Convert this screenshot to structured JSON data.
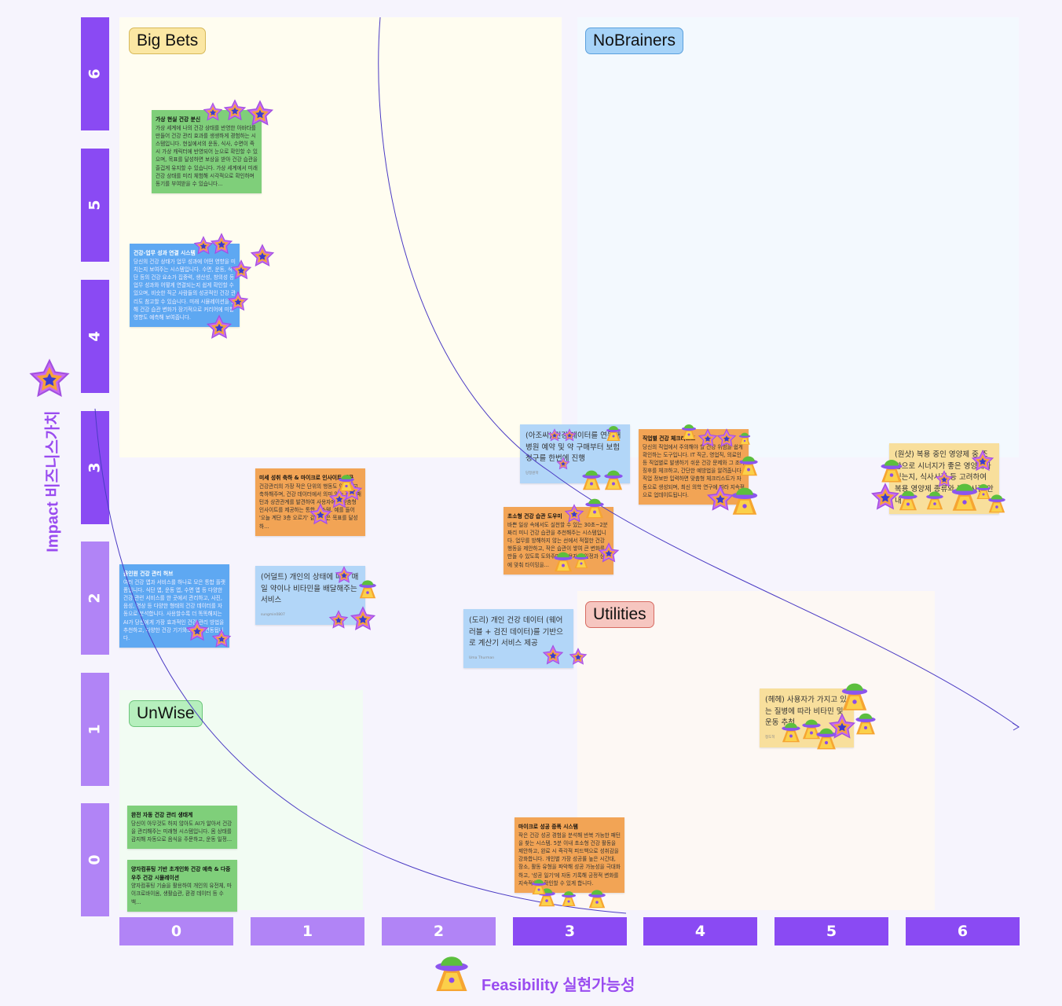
{
  "quadrants": {
    "big_bets": "Big Bets",
    "no_brainers": "NoBrainers",
    "unwise": "UnWise",
    "utilities": "Utilities"
  },
  "axes": {
    "y_title": "Impact 비즈니스가치",
    "x_title": "Feasibility 실현가능성",
    "y_ticks": [
      "6",
      "5",
      "4",
      "3",
      "2",
      "1",
      "0"
    ],
    "x_ticks": [
      "0",
      "1",
      "2",
      "3",
      "4",
      "5",
      "6"
    ],
    "y_icon": "star-icon",
    "x_icon": "ufo-icon"
  },
  "colors": {
    "axis_dark": "#8a4af3",
    "axis_light": "#b184f6",
    "accent_text": "#9a4cf0",
    "curve": "#4b3bc4"
  },
  "stickies": [
    {
      "title": "가상 현실 건강 분신",
      "body": "가상 세계에 나의 건강 상태를 반영한 아바타를 만들어 건강 관리 효과를 생생하게 경험하는 시스템입니다. 현실에서의 운동, 식사, 수면이 즉시 가상 캐릭터에 반영되어 눈으로 확인할 수 있으며, 목표를 달성하면 보상을 받아 건강 습관을 즐겁게 유지할 수 있습니다. 가상 세계에서 미래 건강 상태를 미리 체험해 시각적으로 확인하며 동기를 부여받을 수 있습니다..."
    },
    {
      "title": "건강-업무 성과 연결 시스템",
      "body": "당신의 건강 상태가 업무 성과에 어떤 영향을 미치는지 보여주는 시스템입니다. 수면, 운동, 식단 등의 건강 요소가 집중력, 생산성, 창의성 등 업무 성과와 어떻게 연결되는지 쉽게 확인할 수 있으며, 비슷한 직군 사람들의 성공적인 건강 관리도 참고할 수 있습니다. 미래 시뮬레이션을 통해 건강 습관 변화가 장기적으로 커리어에 미칠 영향도 예측해 보여줍니다."
    },
    {
      "title": "올인원 건강 관리 허브",
      "body": "여러 건강 앱과 서비스를 하나로 모은 통합 플랫폼입니다. 식단 앱, 운동 앱, 수면 앱 등 다양한 건강 관련 서비스를 한 곳에서 관리하고, 사진, 음성, 영상 등 다양한 형태의 건강 데이터를 자동으로 분석합니다. 사용할수록 더 똑똑해지는 AI가 당신에게 가장 효과적인 건강 관리 방법을 추천하고, 다양한 건강 기기와도 쉽게 연동됩니다."
    },
    {
      "title": "미세 성취 축하 & 마이크로 인사이트 제공",
      "body": "건강관리의 가장 작은 단위의 행동도 인식하고 축하해주며, 건강 데이터에서 의미 있는 작은 패턴과 상관관계를 발견하여 사용자에게 맞춤형 인사이트를 제공하는 통합 시스템. 예를 들어 '오늘 계단 3층 오르기' 같은 작은 목표를 달성하..."
    },
    {
      "text": "(어덜트) 개인의 상태에 따라 매일 약이나 비타민을 배달해주는 서비스",
      "author": "sungmin0807"
    },
    {
      "text": "(아조씨) 건강 데이터를 연동해 병원 예약 및 약 구매부터 보험 청구를 한번에 진행",
      "author": "당정원학"
    },
    {
      "title": "직업별 건강 체크리스트",
      "body": "당신의 직업에서 주의해야 할 건강 위험을 쉽게 확인하는 도구입니다. IT 직군, 영업직, 의료인 등 직업별로 발생하기 쉬운 건강 문제와 그 조기 징후를 체크하고, 간단한 예방법을 알려줍니다. 직업 정보만 입력하면 맞춤형 체크리스트가 자동으로 생성되며, 최신 의학 연구에 따라 지속적으로 업데이트됩니다."
    },
    {
      "title": "초소형 건강 습관 도우미",
      "body": "바쁜 일상 속에서도 실천할 수 있는 30초~2분짜리 미니 건강 습관을 추천해주는 시스템입니다. 업무를 방해하지 않는 선에서 적절한 건강 행동을 제안하고, 작은 습관이 쌓여 큰 변화를 만들 수 있도록 도와주며, 사용자의 일정과 상태에 맞춰 타이밍을..."
    },
    {
      "text": "(도리) 개인 건강 데이터 (웨어러블 + 검진 데이터)를 기반으로 계산기 서비스 제공",
      "author": "Uma Thurman"
    },
    {
      "text": "(원샷) 복용 중인 영양제 중 조합으로 시너지가 좋은 영양제가 있는지, 식사시간 등 고려하여 복용 영양제 종류와 복용시간 안내"
    },
    {
      "text": "(헤헤) 사용자가 가지고 있는 질병에 따라 비타민 및 운동 추천",
      "author": "정도히"
    },
    {
      "title": "완전 자동 건강 관리 생태계",
      "body": "당신이 아무것도 하지 않아도 AI가 알아서 건강을 관리해주는 미래형 시스템입니다. 몸 상태를 감지해 자동으로 음식을 주문하고, 운동 일정..."
    },
    {
      "title": "양자컴퓨팅 기반 초개인화 건강 예측 & 다중우주 건강 시뮬레이션",
      "body": "양자컴퓨팅 기술을 활용하여 개인의 유전체, 마이크로바이옴, 생활습관, 환경 데이터 등 수백..."
    },
    {
      "title": "마이크로 성공 증폭 시스템",
      "body": "작은 건강 성공 경험을 분석해 반복 가능한 패턴을 찾는 시스템. 5분 이내 초소형 건강 활동을 제안하고, 완료 시 즉각적 피드백으로 성취감을 강화합니다. 개인별 가장 성공률 높은 시간대, 장소, 활동 유형을 파악해 성공 가능성을 극대화하고, '성공 일기'에 자동 기록해 긍정적 변화를 지속적으로 확인할 수 있게 합니다."
    }
  ]
}
